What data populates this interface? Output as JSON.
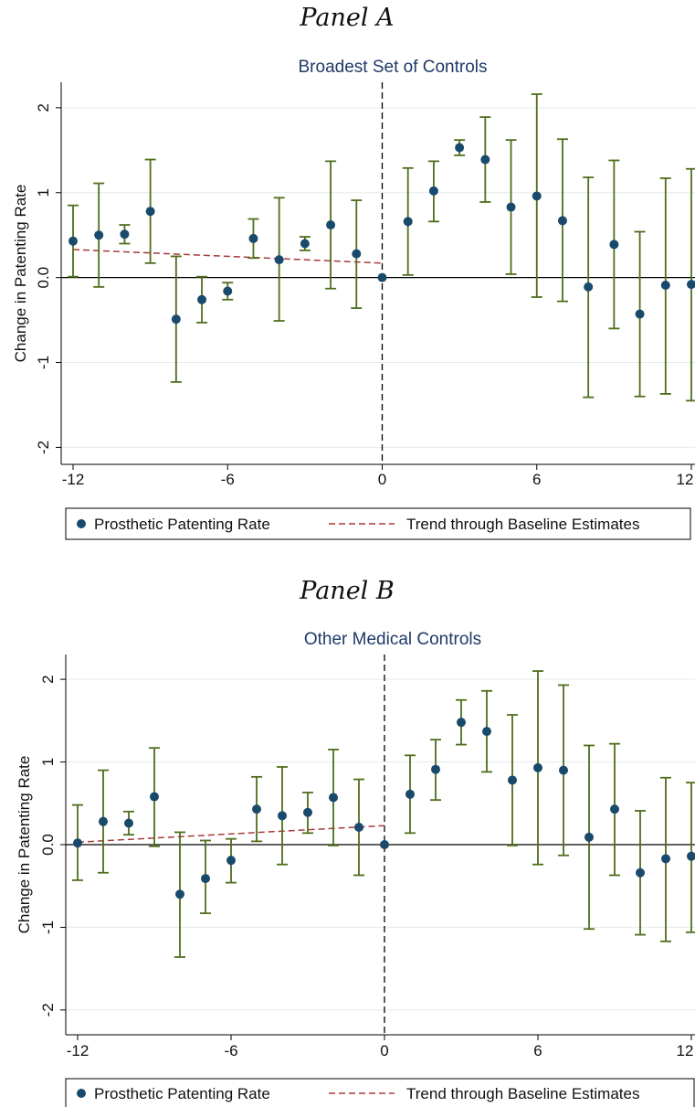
{
  "chart_data": [
    {
      "type": "scatter",
      "panel_label": "Panel A",
      "title": "Broadest Set of Controls",
      "xlabel": "",
      "ylabel": "Change in Patenting Rate",
      "xlim": [
        -12,
        12
      ],
      "ylim": [
        -2.2,
        2.3
      ],
      "xticks": [
        "-12",
        "-6",
        "0",
        "6",
        "12"
      ],
      "xtick_values": [
        -12,
        -6,
        0,
        6,
        12
      ],
      "yticks": [
        "-2",
        "-1",
        "0.0",
        "1",
        "2"
      ],
      "ytick_values": [
        -2,
        -1,
        0,
        1,
        2
      ],
      "grid": true,
      "legend_position": "bottom",
      "series": [
        {
          "name": "Prosthetic Patenting Rate",
          "x": [
            -12,
            -11,
            -10,
            -9,
            -8,
            -7,
            -6,
            -5,
            -4,
            -3,
            -2,
            -1,
            0,
            1,
            2,
            3,
            4,
            5,
            6,
            7,
            8,
            9,
            10,
            11,
            12
          ],
          "y": [
            0.43,
            0.5,
            0.51,
            0.78,
            -0.49,
            -0.26,
            -0.16,
            0.46,
            0.21,
            0.4,
            0.62,
            0.28,
            0.0,
            0.66,
            1.02,
            1.53,
            1.39,
            0.83,
            0.96,
            0.67,
            -0.11,
            0.39,
            -0.43,
            -0.09,
            -0.08
          ],
          "lo": [
            0.01,
            -0.11,
            0.4,
            0.17,
            -1.23,
            -0.53,
            -0.26,
            0.23,
            -0.51,
            0.32,
            -0.13,
            -0.36,
            0.0,
            0.03,
            0.66,
            1.44,
            0.89,
            0.04,
            -0.23,
            -0.28,
            -1.41,
            -0.6,
            -1.4,
            -1.37,
            -1.45
          ],
          "hi": [
            0.85,
            1.11,
            0.62,
            1.39,
            0.25,
            0.01,
            -0.06,
            0.69,
            0.94,
            0.48,
            1.37,
            0.91,
            0.0,
            1.29,
            1.37,
            1.62,
            1.89,
            1.62,
            2.16,
            1.63,
            1.18,
            1.38,
            0.54,
            1.17,
            1.28
          ],
          "color": "#1a4a6b",
          "ci_color": "#4f6e1c"
        },
        {
          "name": "Trend through Baseline Estimates",
          "x": [
            -12,
            0
          ],
          "y": [
            0.33,
            0.17
          ],
          "color": "#a83a3a"
        }
      ]
    },
    {
      "type": "scatter",
      "panel_label": "Panel B",
      "title": "Other Medical Controls",
      "xlabel": "",
      "ylabel": "Change in Patenting Rate",
      "xlim": [
        -12,
        12
      ],
      "ylim": [
        -2.3,
        2.3
      ],
      "xticks": [
        "-12",
        "-6",
        "0",
        "6",
        "12"
      ],
      "xtick_values": [
        -12,
        -6,
        0,
        6,
        12
      ],
      "yticks": [
        "-2",
        "-1",
        "0.0",
        "1",
        "2"
      ],
      "ytick_values": [
        -2,
        -1,
        0,
        1,
        2
      ],
      "grid": true,
      "legend_position": "bottom",
      "series": [
        {
          "name": "Prosthetic Patenting Rate",
          "x": [
            -12,
            -11,
            -10,
            -9,
            -8,
            -7,
            -6,
            -5,
            -4,
            -3,
            -2,
            -1,
            0,
            1,
            2,
            3,
            4,
            5,
            6,
            7,
            8,
            9,
            10,
            11,
            12
          ],
          "y": [
            0.02,
            0.28,
            0.26,
            0.58,
            -0.6,
            -0.41,
            -0.19,
            0.43,
            0.35,
            0.39,
            0.57,
            0.21,
            0.0,
            0.61,
            0.91,
            1.48,
            1.37,
            0.78,
            0.93,
            0.9,
            0.09,
            0.43,
            -0.34,
            -0.17,
            -0.14
          ],
          "lo": [
            -0.43,
            -0.34,
            0.12,
            -0.02,
            -1.36,
            -0.83,
            -0.46,
            0.04,
            -0.24,
            0.14,
            -0.01,
            -0.37,
            0.0,
            0.14,
            0.54,
            1.21,
            0.88,
            -0.01,
            -0.24,
            -0.13,
            -1.02,
            -0.37,
            -1.09,
            -1.17,
            -1.06
          ],
          "hi": [
            0.48,
            0.9,
            0.4,
            1.17,
            0.15,
            0.05,
            0.07,
            0.82,
            0.94,
            0.63,
            1.15,
            0.79,
            0.0,
            1.08,
            1.27,
            1.75,
            1.86,
            1.57,
            2.1,
            1.93,
            1.2,
            1.22,
            0.41,
            0.81,
            0.75
          ],
          "color": "#1a4a6b",
          "ci_color": "#4f6e1c"
        },
        {
          "name": "Trend through Baseline Estimates",
          "x": [
            -12,
            0
          ],
          "y": [
            0.03,
            0.23
          ],
          "color": "#a83a3a"
        }
      ]
    }
  ]
}
